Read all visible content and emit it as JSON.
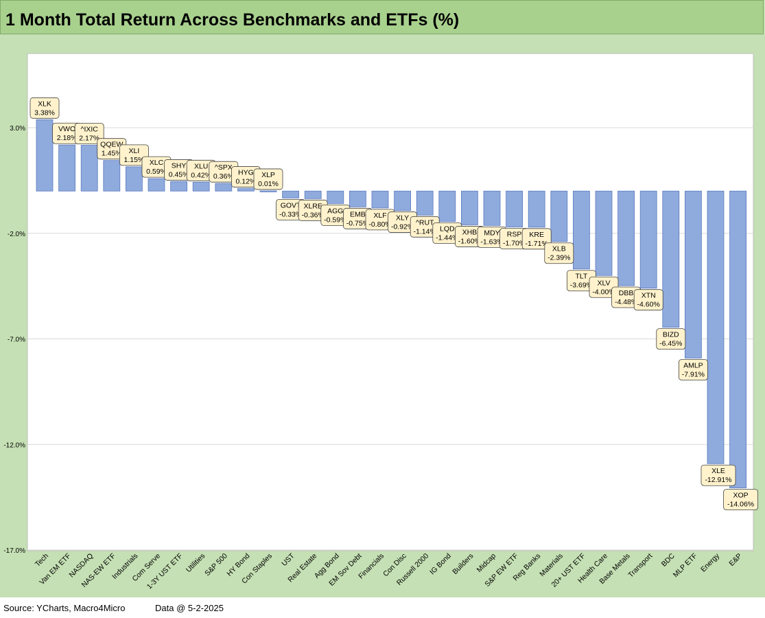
{
  "title": "1 Month Total Return Across Benchmarks and ETFs (%)",
  "source": "Source: YCharts, Macro4Micro",
  "data_date": "Data @ 5-2-2025",
  "colors": {
    "bar": "#8faadc",
    "bar_stroke": "#5a7bbf",
    "label_bg": "#fff2cc",
    "frame": "#c5e0b4",
    "title_bg": "#a9d18e"
  },
  "chart_data": {
    "type": "bar",
    "title": "1 Month Total Return Across Benchmarks and ETFs (%)",
    "xlabel": "",
    "ylabel": "",
    "ylim": [
      -17,
      6
    ],
    "yticks": [
      3,
      -2,
      -7,
      -12,
      -17
    ],
    "ytick_labels": [
      "3.0%",
      "-2.0%",
      "-7.0%",
      "-12.0%",
      "-17.0%"
    ],
    "grid": true,
    "legend": "none",
    "categories": [
      "Tech",
      "Van EM ETF",
      "NASDAQ",
      "NAS-EW ETF",
      "Industrials",
      "Com Serve",
      "1-3Y UST ETF",
      "Utilities",
      "S&P 500",
      "HY Bond",
      "Con Staples",
      "UST",
      "Real Estate",
      "Agg Bond",
      "EM Sov Debt",
      "Financials",
      "Con Disc",
      "Russell 2000",
      "IG Bond",
      "Builders",
      "Midcap",
      "S&P EW ETF",
      "Reg Banks",
      "Materials",
      "20+ UST ETF",
      "Health Care",
      "Base Metals",
      "Transport",
      "BDC",
      "MLP ETF",
      "Energy",
      "E&P"
    ],
    "tickers": [
      "XLK",
      "VWO",
      "^IXIC",
      "QQEW",
      "XLI",
      "XLC",
      "SHY",
      "XLU",
      "^SPX",
      "HYG",
      "XLP",
      "GOVT",
      "XLRE",
      "AGG",
      "EMB",
      "XLF",
      "XLY",
      "^RUT",
      "LQD",
      "XHB",
      "MDY",
      "RSP",
      "KRE",
      "XLB",
      "TLT",
      "XLV",
      "DBB",
      "XTN",
      "BIZD",
      "AMLP",
      "XLE",
      "XOP"
    ],
    "values": [
      3.38,
      2.18,
      2.17,
      1.45,
      1.15,
      0.59,
      0.45,
      0.42,
      0.36,
      0.12,
      0.01,
      -0.33,
      -0.36,
      -0.59,
      -0.75,
      -0.8,
      -0.92,
      -1.14,
      -1.44,
      -1.6,
      -1.63,
      -1.7,
      -1.71,
      -2.39,
      -3.69,
      -4.0,
      -4.48,
      -4.6,
      -6.45,
      -7.91,
      -12.91,
      -14.06
    ],
    "data_labels": [
      "3.38%",
      "2.18%",
      "2.17%",
      "1.45%",
      "1.15%",
      "0.59%",
      "0.45%",
      "0.42%",
      "0.36%",
      "0.12%",
      "0.01%",
      "-0.33%",
      "-0.36%",
      "-0.59%",
      "-0.75%",
      "-0.80%",
      "-0.92%",
      "-1.14%",
      "-1.44%",
      "-1.60%",
      "-1.63%",
      "-1.70%",
      "-1.71%",
      "-2.39%",
      "-3.69%",
      "-4.00%",
      "-4.48%",
      "-4.60%",
      "-6.45%",
      "-7.91%",
      "-12.91%",
      "-14.06%"
    ]
  }
}
